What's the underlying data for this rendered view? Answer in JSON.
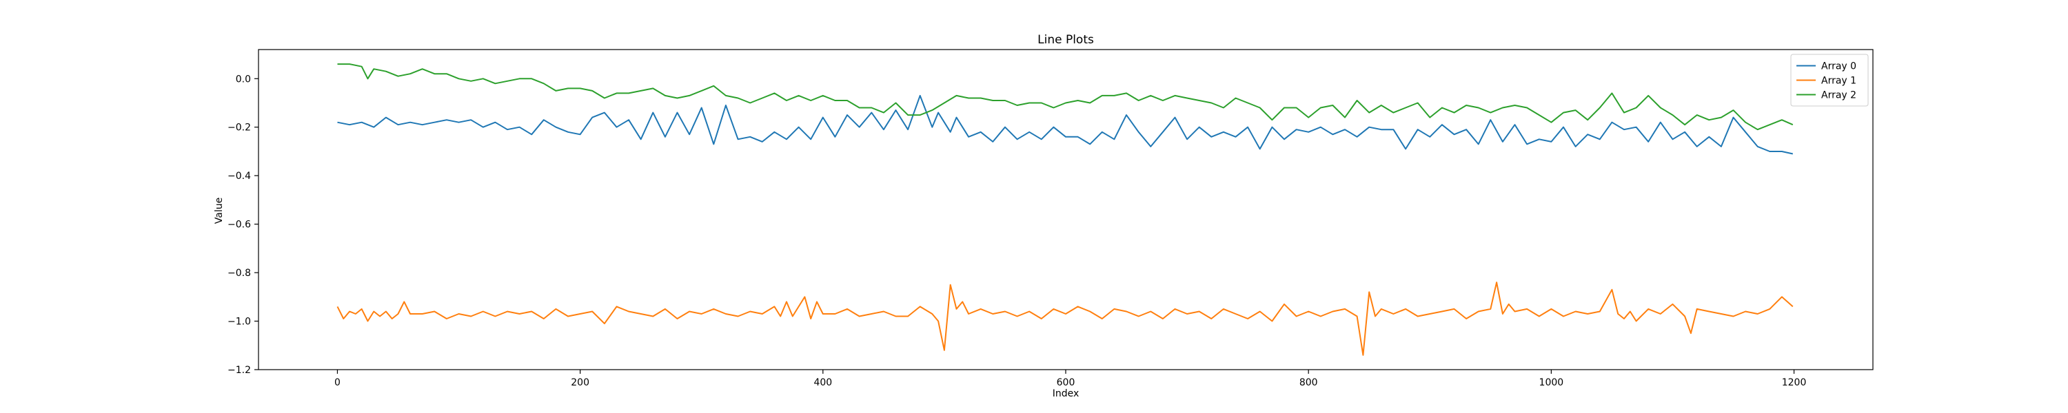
{
  "chart_data": {
    "type": "line",
    "title": "Line Plots",
    "xlabel": "Index",
    "ylabel": "Value",
    "xlim": [
      -65,
      1265
    ],
    "ylim": [
      -1.2,
      0.12
    ],
    "xticks": [
      0,
      200,
      400,
      600,
      800,
      1000,
      1200
    ],
    "xtick_labels": [
      "0",
      "200",
      "400",
      "600",
      "800",
      "1000",
      "1200"
    ],
    "yticks": [
      0.0,
      -0.2,
      -0.4,
      -0.6,
      -0.8,
      -1.0,
      -1.2
    ],
    "ytick_labels": [
      "0.0",
      "−0.2",
      "−0.4",
      "−0.6",
      "−0.8",
      "−1.0",
      "−1.2"
    ],
    "grid": false,
    "legend_position": "top-right",
    "series": [
      {
        "name": "Array 0",
        "color": "#1f77b4",
        "x": [
          0,
          10,
          20,
          30,
          40,
          50,
          60,
          70,
          80,
          90,
          100,
          110,
          120,
          130,
          140,
          150,
          160,
          170,
          180,
          190,
          200,
          210,
          220,
          230,
          240,
          250,
          260,
          270,
          280,
          290,
          300,
          310,
          320,
          330,
          340,
          350,
          360,
          370,
          380,
          390,
          400,
          410,
          420,
          430,
          440,
          450,
          460,
          470,
          480,
          490,
          495,
          500,
          505,
          510,
          520,
          530,
          540,
          550,
          560,
          570,
          580,
          590,
          600,
          610,
          620,
          630,
          640,
          650,
          660,
          670,
          680,
          690,
          700,
          710,
          720,
          730,
          740,
          750,
          760,
          770,
          780,
          790,
          800,
          810,
          820,
          830,
          840,
          850,
          860,
          870,
          880,
          890,
          900,
          910,
          920,
          930,
          940,
          950,
          960,
          970,
          980,
          990,
          1000,
          1010,
          1020,
          1030,
          1040,
          1050,
          1060,
          1070,
          1080,
          1090,
          1100,
          1110,
          1120,
          1130,
          1140,
          1150,
          1160,
          1170,
          1180,
          1190,
          1199
        ],
        "y": [
          -0.18,
          -0.19,
          -0.18,
          -0.2,
          -0.16,
          -0.19,
          -0.18,
          -0.19,
          -0.18,
          -0.17,
          -0.18,
          -0.17,
          -0.2,
          -0.18,
          -0.21,
          -0.2,
          -0.23,
          -0.17,
          -0.2,
          -0.22,
          -0.23,
          -0.16,
          -0.14,
          -0.2,
          -0.17,
          -0.25,
          -0.14,
          -0.24,
          -0.14,
          -0.23,
          -0.12,
          -0.27,
          -0.11,
          -0.25,
          -0.24,
          -0.26,
          -0.22,
          -0.25,
          -0.2,
          -0.25,
          -0.16,
          -0.24,
          -0.15,
          -0.2,
          -0.14,
          -0.21,
          -0.13,
          -0.21,
          -0.07,
          -0.2,
          -0.14,
          -0.18,
          -0.22,
          -0.16,
          -0.24,
          -0.22,
          -0.26,
          -0.2,
          -0.25,
          -0.22,
          -0.25,
          -0.2,
          -0.24,
          -0.24,
          -0.27,
          -0.22,
          -0.25,
          -0.15,
          -0.22,
          -0.28,
          -0.22,
          -0.16,
          -0.25,
          -0.2,
          -0.24,
          -0.22,
          -0.24,
          -0.2,
          -0.29,
          -0.2,
          -0.25,
          -0.21,
          -0.22,
          -0.2,
          -0.23,
          -0.21,
          -0.24,
          -0.2,
          -0.21,
          -0.21,
          -0.29,
          -0.21,
          -0.24,
          -0.19,
          -0.23,
          -0.21,
          -0.27,
          -0.17,
          -0.26,
          -0.19,
          -0.27,
          -0.25,
          -0.26,
          -0.2,
          -0.28,
          -0.23,
          -0.25,
          -0.18,
          -0.21,
          -0.2,
          -0.26,
          -0.18,
          -0.25,
          -0.22,
          -0.28,
          -0.24,
          -0.28,
          -0.16,
          -0.22,
          -0.28,
          -0.3,
          -0.3,
          -0.31
        ]
      },
      {
        "name": "Array 1",
        "color": "#ff7f0e",
        "x": [
          0,
          5,
          10,
          15,
          20,
          25,
          30,
          35,
          40,
          45,
          50,
          55,
          60,
          70,
          80,
          90,
          100,
          110,
          120,
          130,
          140,
          150,
          160,
          170,
          180,
          190,
          200,
          210,
          220,
          230,
          240,
          250,
          260,
          270,
          280,
          290,
          300,
          310,
          320,
          330,
          340,
          350,
          360,
          365,
          370,
          375,
          380,
          385,
          390,
          395,
          400,
          410,
          420,
          430,
          440,
          450,
          460,
          470,
          480,
          490,
          495,
          500,
          505,
          510,
          515,
          520,
          530,
          540,
          550,
          560,
          570,
          580,
          590,
          600,
          610,
          620,
          630,
          640,
          650,
          660,
          670,
          680,
          690,
          700,
          710,
          720,
          730,
          740,
          750,
          760,
          770,
          780,
          790,
          800,
          810,
          820,
          830,
          840,
          845,
          850,
          855,
          860,
          870,
          880,
          890,
          900,
          910,
          920,
          930,
          940,
          950,
          955,
          960,
          965,
          970,
          980,
          990,
          1000,
          1010,
          1020,
          1030,
          1040,
          1050,
          1055,
          1060,
          1065,
          1070,
          1080,
          1090,
          1100,
          1110,
          1115,
          1120,
          1130,
          1140,
          1150,
          1160,
          1170,
          1180,
          1190,
          1199
        ],
        "y": [
          -0.94,
          -0.99,
          -0.96,
          -0.97,
          -0.95,
          -1.0,
          -0.96,
          -0.98,
          -0.96,
          -0.99,
          -0.97,
          -0.92,
          -0.97,
          -0.97,
          -0.96,
          -0.99,
          -0.97,
          -0.98,
          -0.96,
          -0.98,
          -0.96,
          -0.97,
          -0.96,
          -0.99,
          -0.95,
          -0.98,
          -0.97,
          -0.96,
          -1.01,
          -0.94,
          -0.96,
          -0.97,
          -0.98,
          -0.95,
          -0.99,
          -0.96,
          -0.97,
          -0.95,
          -0.97,
          -0.98,
          -0.96,
          -0.97,
          -0.94,
          -0.98,
          -0.92,
          -0.98,
          -0.94,
          -0.9,
          -0.99,
          -0.92,
          -0.97,
          -0.97,
          -0.95,
          -0.98,
          -0.97,
          -0.96,
          -0.98,
          -0.98,
          -0.94,
          -0.97,
          -1.0,
          -1.12,
          -0.85,
          -0.95,
          -0.92,
          -0.97,
          -0.95,
          -0.97,
          -0.96,
          -0.98,
          -0.96,
          -0.99,
          -0.95,
          -0.97,
          -0.94,
          -0.96,
          -0.99,
          -0.95,
          -0.96,
          -0.98,
          -0.96,
          -0.99,
          -0.95,
          -0.97,
          -0.96,
          -0.99,
          -0.95,
          -0.97,
          -0.99,
          -0.96,
          -1.0,
          -0.93,
          -0.98,
          -0.96,
          -0.98,
          -0.96,
          -0.95,
          -0.98,
          -1.14,
          -0.88,
          -0.98,
          -0.95,
          -0.97,
          -0.95,
          -0.98,
          -0.97,
          -0.96,
          -0.95,
          -0.99,
          -0.96,
          -0.95,
          -0.84,
          -0.97,
          -0.93,
          -0.96,
          -0.95,
          -0.98,
          -0.95,
          -0.98,
          -0.96,
          -0.97,
          -0.96,
          -0.87,
          -0.97,
          -0.99,
          -0.96,
          -1.0,
          -0.95,
          -0.97,
          -0.93,
          -0.98,
          -1.05,
          -0.95,
          -0.96,
          -0.97,
          -0.98,
          -0.96,
          -0.97,
          -0.95,
          -0.9,
          -0.94
        ]
      },
      {
        "name": "Array 2",
        "color": "#2ca02c",
        "x": [
          0,
          10,
          20,
          25,
          30,
          40,
          50,
          60,
          70,
          80,
          90,
          100,
          110,
          120,
          130,
          140,
          150,
          160,
          170,
          180,
          190,
          200,
          210,
          220,
          230,
          240,
          250,
          260,
          270,
          280,
          290,
          300,
          310,
          320,
          330,
          340,
          350,
          360,
          370,
          380,
          390,
          400,
          410,
          420,
          430,
          440,
          450,
          460,
          470,
          480,
          490,
          500,
          510,
          520,
          530,
          540,
          550,
          560,
          570,
          580,
          590,
          600,
          610,
          620,
          630,
          640,
          650,
          660,
          670,
          680,
          690,
          700,
          710,
          720,
          730,
          740,
          750,
          760,
          770,
          780,
          790,
          800,
          810,
          820,
          830,
          840,
          850,
          860,
          870,
          880,
          890,
          900,
          910,
          920,
          930,
          940,
          950,
          960,
          970,
          980,
          990,
          1000,
          1010,
          1020,
          1030,
          1040,
          1050,
          1060,
          1070,
          1080,
          1090,
          1100,
          1110,
          1120,
          1130,
          1140,
          1150,
          1160,
          1170,
          1180,
          1190,
          1199
        ],
        "y": [
          0.06,
          0.06,
          0.05,
          0.0,
          0.04,
          0.03,
          0.01,
          0.02,
          0.04,
          0.02,
          0.02,
          0.0,
          -0.01,
          0.0,
          -0.02,
          -0.01,
          0.0,
          0.0,
          -0.02,
          -0.05,
          -0.04,
          -0.04,
          -0.05,
          -0.08,
          -0.06,
          -0.06,
          -0.05,
          -0.04,
          -0.07,
          -0.08,
          -0.07,
          -0.05,
          -0.03,
          -0.07,
          -0.08,
          -0.1,
          -0.08,
          -0.06,
          -0.09,
          -0.07,
          -0.09,
          -0.07,
          -0.09,
          -0.09,
          -0.12,
          -0.12,
          -0.14,
          -0.1,
          -0.15,
          -0.15,
          -0.13,
          -0.1,
          -0.07,
          -0.08,
          -0.08,
          -0.09,
          -0.09,
          -0.11,
          -0.1,
          -0.1,
          -0.12,
          -0.1,
          -0.09,
          -0.1,
          -0.07,
          -0.07,
          -0.06,
          -0.09,
          -0.07,
          -0.09,
          -0.07,
          -0.08,
          -0.09,
          -0.1,
          -0.12,
          -0.08,
          -0.1,
          -0.12,
          -0.17,
          -0.12,
          -0.12,
          -0.16,
          -0.12,
          -0.11,
          -0.16,
          -0.09,
          -0.14,
          -0.11,
          -0.14,
          -0.12,
          -0.1,
          -0.16,
          -0.12,
          -0.14,
          -0.11,
          -0.12,
          -0.14,
          -0.12,
          -0.11,
          -0.12,
          -0.15,
          -0.18,
          -0.14,
          -0.13,
          -0.17,
          -0.12,
          -0.06,
          -0.14,
          -0.12,
          -0.07,
          -0.12,
          -0.15,
          -0.19,
          -0.15,
          -0.17,
          -0.16,
          -0.13,
          -0.18,
          -0.21,
          -0.19,
          -0.17,
          -0.19
        ]
      }
    ]
  }
}
